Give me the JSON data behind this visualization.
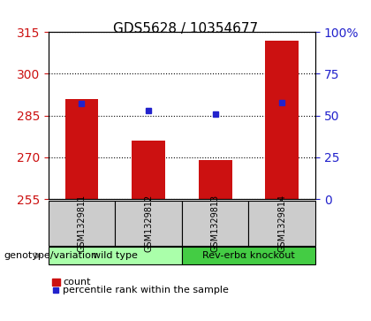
{
  "title": "GDS5628 / 10354677",
  "samples": [
    "GSM1329811",
    "GSM1329812",
    "GSM1329813",
    "GSM1329814"
  ],
  "bar_values": [
    291.0,
    276.0,
    269.0,
    312.0
  ],
  "percentile_values": [
    57.0,
    53.0,
    51.0,
    58.0
  ],
  "ylim_left": [
    255,
    315
  ],
  "ylim_right": [
    0,
    100
  ],
  "yticks_left": [
    255,
    270,
    285,
    300,
    315
  ],
  "yticks_right": [
    0,
    25,
    50,
    75,
    100
  ],
  "ytick_labels_right": [
    "0",
    "25",
    "50",
    "75",
    "100%"
  ],
  "bar_color": "#cc1111",
  "percentile_color": "#2222cc",
  "bar_width": 0.5,
  "groups": [
    {
      "label": "wild type",
      "samples": [
        0,
        1
      ],
      "color": "#aaffaa"
    },
    {
      "label": "Rev-erbα knockout",
      "samples": [
        2,
        3
      ],
      "color": "#44cc44"
    }
  ],
  "group_label": "genotype/variation",
  "legend_count_label": "count",
  "legend_percentile_label": "percentile rank within the sample",
  "ax_bg_color": "#ffffff",
  "left_tick_color": "#cc1111",
  "right_tick_color": "#2222cc",
  "label_box_color": "#cccccc"
}
